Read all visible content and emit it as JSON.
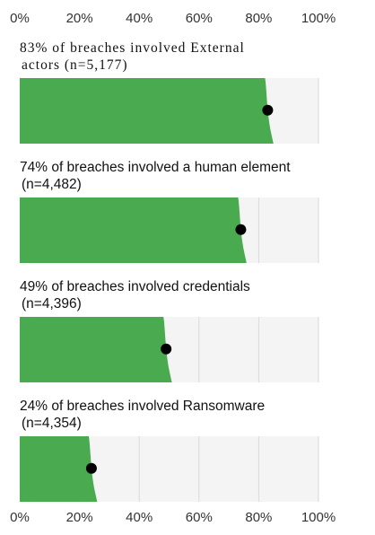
{
  "chart_data": {
    "type": "bar",
    "orientation": "horizontal",
    "xlim": [
      0,
      100
    ],
    "x_ticks": [
      "0%",
      "20%",
      "40%",
      "60%",
      "80%",
      "100%"
    ],
    "colors": {
      "bar": "#4aaa4f",
      "track": "#f4f4f4",
      "grid": "#d9d9d9",
      "marker": "#000000"
    },
    "panels": [
      {
        "title": "83% of breaches involved External",
        "subtitle": "actors (n=5,177)",
        "value": 83,
        "serif": true
      },
      {
        "title": "74% of breaches involved a human element",
        "subtitle": "(n=4,482)",
        "value": 74,
        "serif": false
      },
      {
        "title": "49% of breaches involved credentials",
        "subtitle": "(n=4,396)",
        "value": 49,
        "serif": false
      },
      {
        "title": "24% of breaches involved Ransomware",
        "subtitle": "(n=4,354)",
        "value": 24,
        "serif": false
      }
    ]
  }
}
